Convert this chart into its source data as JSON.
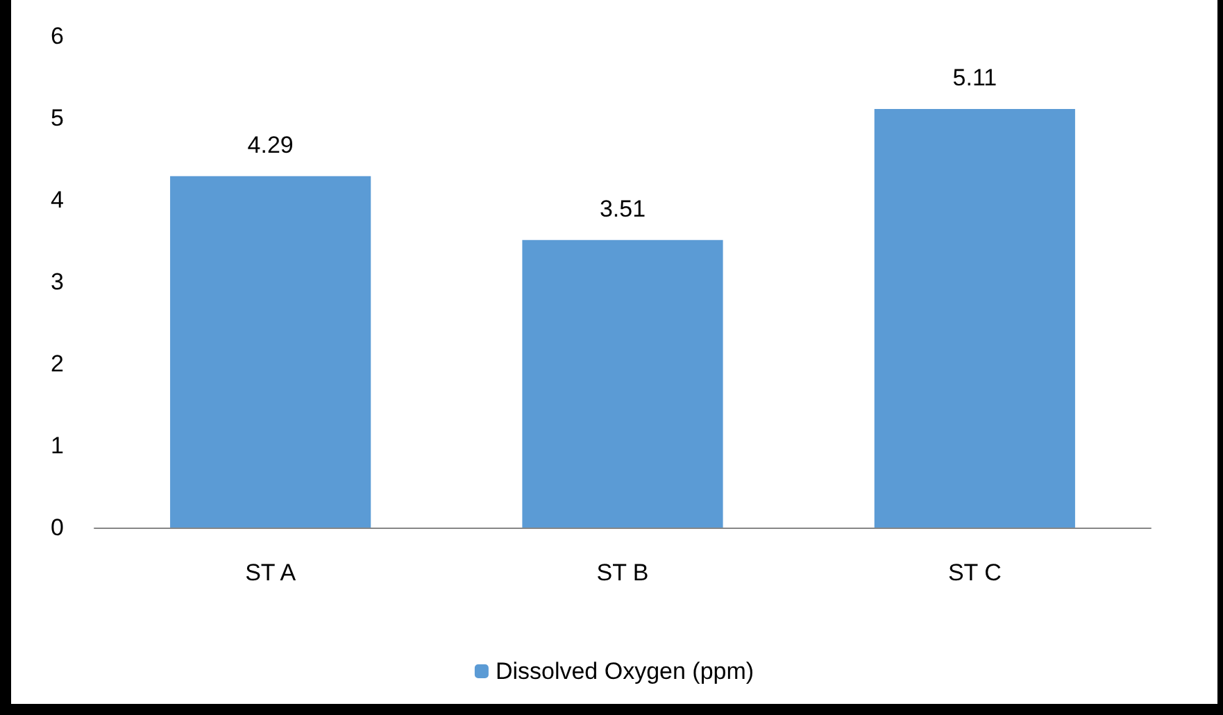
{
  "chart_data": {
    "type": "bar",
    "categories": [
      "ST A",
      "ST B",
      "ST C"
    ],
    "series": [
      {
        "name": "Dissolved Oxygen (ppm)",
        "color": "#5b9bd5",
        "values": [
          4.29,
          3.51,
          5.11
        ]
      }
    ],
    "ylim": [
      0,
      6
    ],
    "yticks": [
      0,
      1,
      2,
      3,
      4,
      5,
      6
    ],
    "grid": false,
    "legend": "bottom",
    "data_labels": true
  }
}
